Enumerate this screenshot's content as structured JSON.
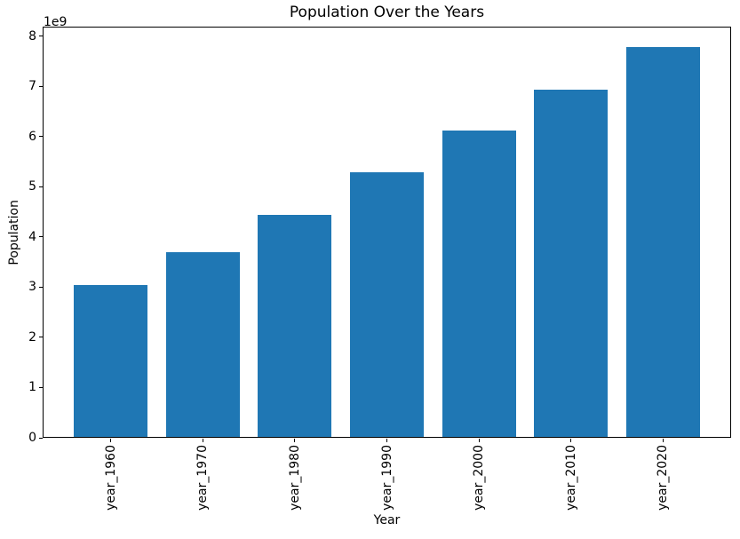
{
  "chart_data": {
    "type": "bar",
    "title": "Population Over the Years",
    "xlabel": "Year",
    "ylabel": "Population",
    "y_offset_label": "1e9",
    "categories": [
      "year_1960",
      "year_1970",
      "year_1980",
      "year_1990",
      "year_2000",
      "year_2010",
      "year_2020"
    ],
    "values": [
      3030000000,
      3680000000,
      4430000000,
      5270000000,
      6110000000,
      6920000000,
      7760000000
    ],
    "bar_color": "#1f77b4",
    "background_color": "#ffffff",
    "spine_color": "#000000",
    "ylim": [
      0,
      8190000000
    ],
    "yticks": [
      0,
      1000000000,
      2000000000,
      3000000000,
      4000000000,
      5000000000,
      6000000000,
      7000000000,
      8000000000
    ],
    "ytick_labels": [
      "0",
      "1",
      "2",
      "3",
      "4",
      "5",
      "6",
      "7",
      "8"
    ],
    "grid": false,
    "legend_position": "none"
  }
}
